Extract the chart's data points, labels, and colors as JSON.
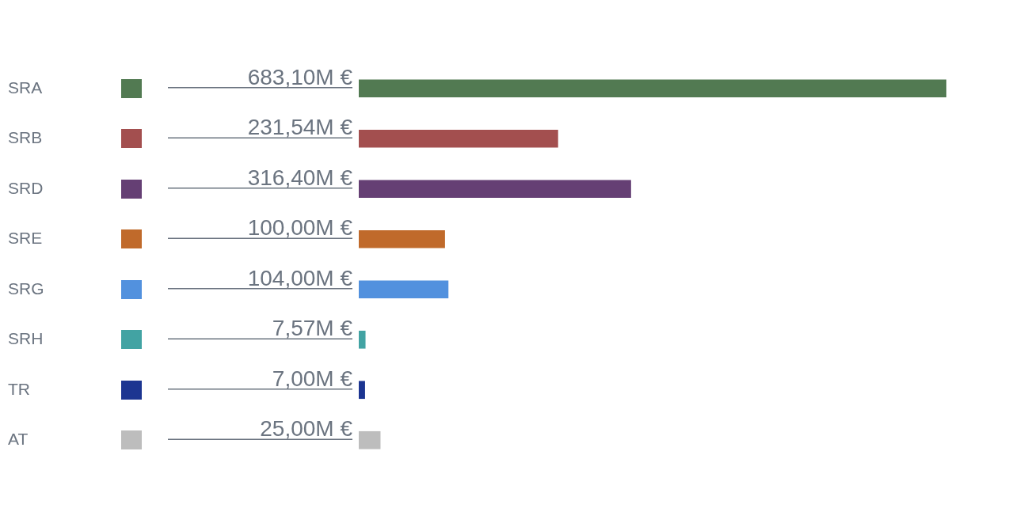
{
  "chart_data": {
    "type": "bar",
    "orientation": "horizontal",
    "categories": [
      "SRA",
      "SRB",
      "SRD",
      "SRE",
      "SRG",
      "SRH",
      "TR",
      "AT"
    ],
    "values": [
      683.1,
      231.54,
      316.4,
      100.0,
      104.0,
      7.57,
      7.0,
      25.0
    ],
    "value_labels": [
      "683,10M €",
      "231,54M €",
      "316,40M €",
      "100,00M €",
      "104,00M €",
      "7,57M €",
      "7,00M €",
      "25,00M €"
    ],
    "colors": [
      "#527a52",
      "#a34f4f",
      "#653f74",
      "#c06a2b",
      "#5291de",
      "#42a3a3",
      "#1c3591",
      "#bdbdbd"
    ],
    "grid": false,
    "legend": false
  }
}
